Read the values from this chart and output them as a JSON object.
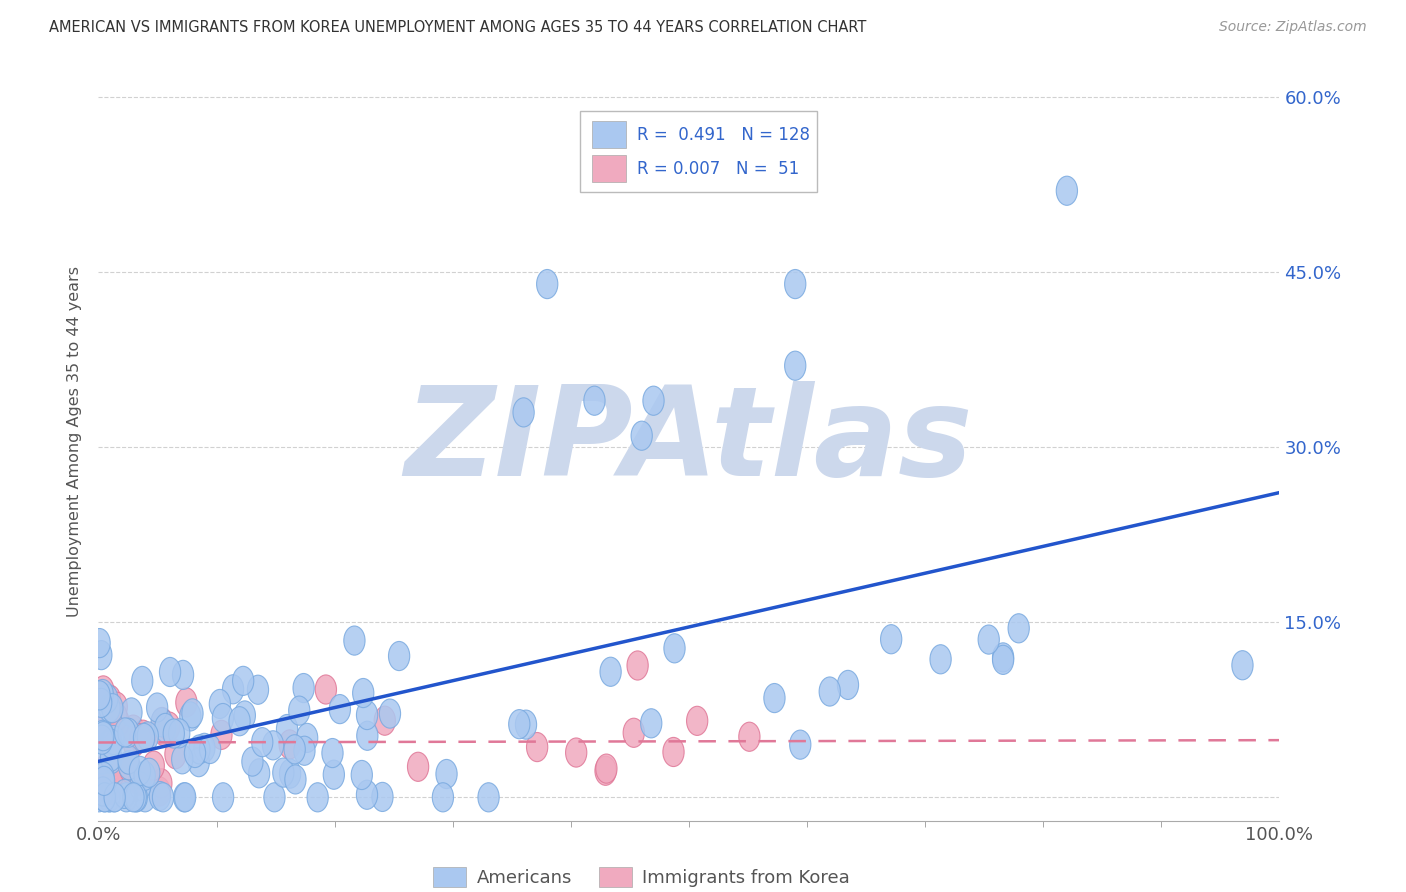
{
  "title": "AMERICAN VS IMMIGRANTS FROM KOREA UNEMPLOYMENT AMONG AGES 35 TO 44 YEARS CORRELATION CHART",
  "source": "Source: ZipAtlas.com",
  "ylabel": "Unemployment Among Ages 35 to 44 years",
  "legend_label_american": "Americans",
  "legend_label_immigrant": "Immigrants from Korea",
  "americans_color": "#aac8f0",
  "immigrants_color": "#f0aabf",
  "americans_edge_color": "#7aaae0",
  "immigrants_edge_color": "#e07898",
  "trend_american_color": "#2255cc",
  "trend_immigrant_color": "#e07898",
  "watermark": "ZIPAtlas",
  "watermark_color": "#ccd8ec",
  "R_american": 0.491,
  "N_american": 128,
  "R_immigrant": 0.007,
  "N_immigrant": 51,
  "yticks": [
    0.0,
    0.15,
    0.3,
    0.45,
    0.6
  ],
  "ytick_labels": [
    "",
    "15.0%",
    "30.0%",
    "45.0%",
    "60.0%"
  ],
  "xticks": [
    0.0,
    1.0
  ],
  "xtick_labels": [
    "0.0%",
    "100.0%"
  ],
  "legend_r_american": "R =  0.491   N = 128",
  "legend_r_immigrant": "R = 0.007   N =  51",
  "seed_am": 77,
  "seed_im": 42
}
